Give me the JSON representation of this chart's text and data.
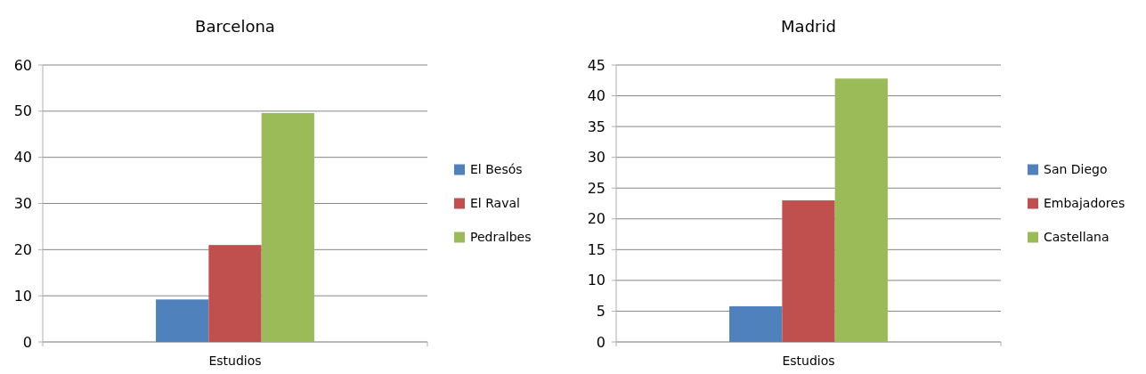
{
  "chart_data": [
    {
      "type": "bar",
      "title": "Barcelona",
      "categories": [
        "Estudios"
      ],
      "series": [
        {
          "name": "El Besós",
          "color": "#4f81bd",
          "values": [
            9.2
          ]
        },
        {
          "name": "El Raval",
          "color": "#c0504d",
          "values": [
            21.0
          ]
        },
        {
          "name": "Pedralbes",
          "color": "#9bbb59",
          "values": [
            49.6
          ]
        }
      ],
      "ylim": [
        0,
        60
      ],
      "yticks": [
        0,
        10,
        20,
        30,
        40,
        50,
        60
      ],
      "grid": "y",
      "legend": "right"
    },
    {
      "type": "bar",
      "title": "Madrid",
      "categories": [
        "Estudios"
      ],
      "series": [
        {
          "name": "San Diego",
          "color": "#4f81bd",
          "values": [
            5.8
          ]
        },
        {
          "name": "Embajadores",
          "color": "#c0504d",
          "values": [
            23.0
          ]
        },
        {
          "name": "Castellana",
          "color": "#9bbb59",
          "values": [
            42.8
          ]
        }
      ],
      "ylim": [
        0,
        45
      ],
      "yticks": [
        0,
        5,
        10,
        15,
        20,
        25,
        30,
        35,
        40,
        45
      ],
      "grid": "y",
      "legend": "right"
    }
  ]
}
